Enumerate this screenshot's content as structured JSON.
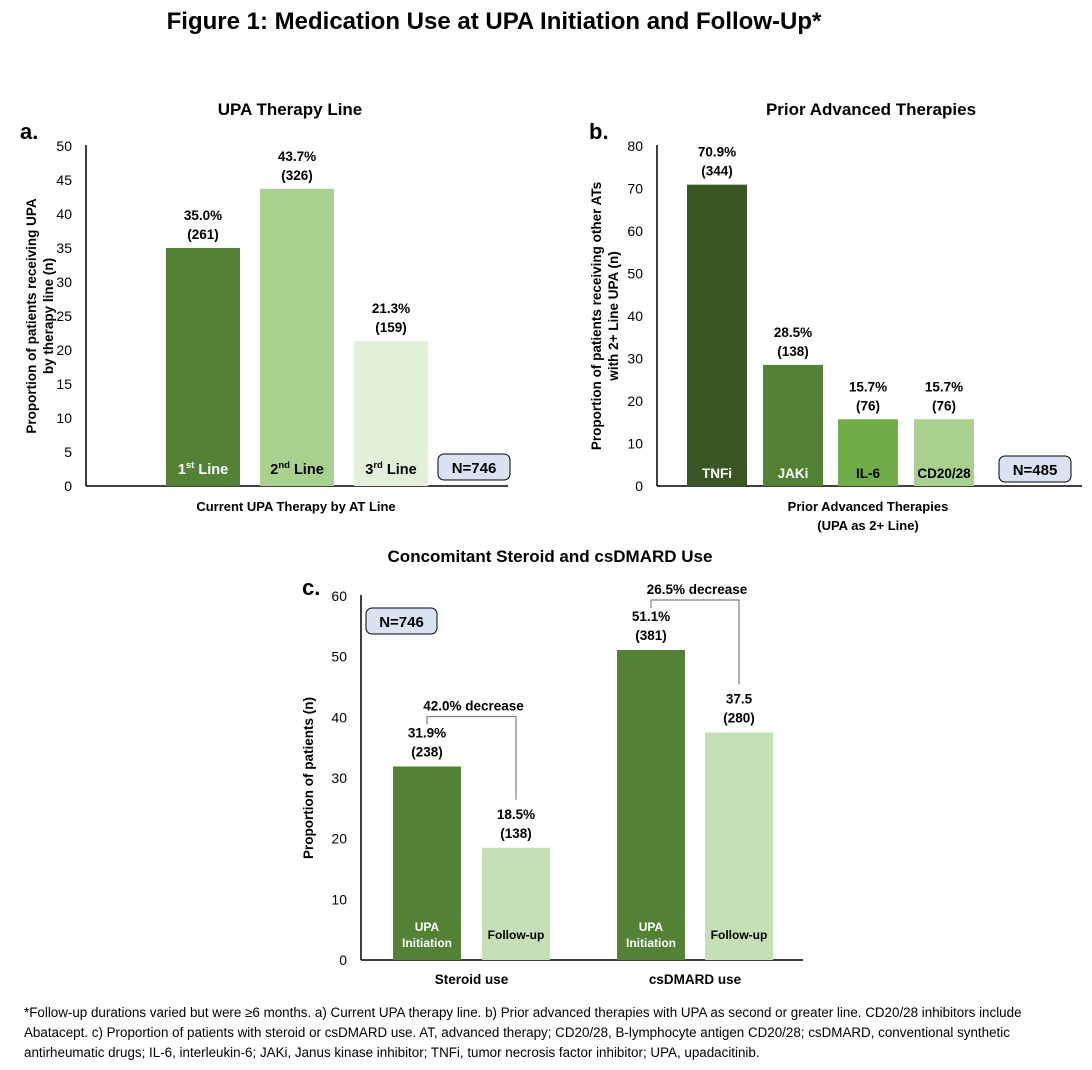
{
  "figure": {
    "title": "Figure  1: Medication Use at UPA Initiation and Follow-Up*",
    "footnote": "*Follow-up durations varied but were ≥6 months. a) Current UPA therapy line. b) Prior advanced therapies with UPA as second or greater line. CD20/28 inhibitors include Abatacept. c) Proportion of patients with steroid or csDMARD use. AT, advanced therapy; CD20/28, B-lymphocyte antigen CD20/28; csDMARD, conventional synthetic antirheumatic drugs; IL-6, interleukin-6; JAKi, Janus kinase inhibitor; TNFi, tumor necrosis factor inhibitor; UPA, upadacitinib."
  },
  "chart_data": [
    {
      "panel": "a.",
      "type": "bar",
      "title": "UPA Therapy Line",
      "xlabel": "Current UPA Therapy by AT Line",
      "ylabel_lines": [
        "Proportion of patients receiving UPA",
        "by therapy line (n)"
      ],
      "ylim": [
        0,
        50
      ],
      "yticks": [
        0,
        5,
        10,
        15,
        20,
        25,
        30,
        35,
        40,
        45,
        50
      ],
      "n_label": "N=746",
      "bars": [
        {
          "base": "1",
          "sup": "st",
          "rest": " Line",
          "value": 35.0,
          "pct": "35.0%",
          "n": "(261)",
          "color": "#548235",
          "text_color": "#ffffff"
        },
        {
          "base": "2",
          "sup": "nd",
          "rest": " Line",
          "value": 43.7,
          "pct": "43.7%",
          "n": "(326)",
          "color": "#a9d18e",
          "text_color": "#000000"
        },
        {
          "base": "3",
          "sup": "rd",
          "rest": " Line",
          "value": 21.3,
          "pct": "21.3%",
          "n": "(159)",
          "color": "#e2f0d9",
          "text_color": "#000000"
        }
      ]
    },
    {
      "panel": "b.",
      "type": "bar",
      "title": "Prior Advanced Therapies",
      "xlabel_lines": [
        "Prior Advanced Therapies",
        "(UPA as 2+ Line)"
      ],
      "ylabel_lines": [
        "Proportion of patients receiving other ATs",
        "with 2+ Line UPA (n)"
      ],
      "ylim": [
        0,
        80
      ],
      "yticks": [
        0,
        10,
        20,
        30,
        40,
        50,
        60,
        70,
        80
      ],
      "n_label": "N=485",
      "bars": [
        {
          "label": "TNFi",
          "value": 70.9,
          "pct": "70.9%",
          "n": "(344)",
          "color": "#385723",
          "text_color": "#ffffff"
        },
        {
          "label": "JAKi",
          "value": 28.5,
          "pct": "28.5%",
          "n": "(138)",
          "color": "#548235",
          "text_color": "#ffffff"
        },
        {
          "label": "IL-6",
          "value": 15.7,
          "pct": "15.7%",
          "n": "(76)",
          "color": "#70ad47",
          "text_color": "#000000"
        },
        {
          "label": "CD20/28",
          "value": 15.7,
          "pct": "15.7%",
          "n": "(76)",
          "color": "#a9d18e",
          "text_color": "#000000"
        }
      ]
    },
    {
      "panel": "c.",
      "type": "bar",
      "title": "Concomitant Steroid and csDMARD Use",
      "ylabel": "Proportion of patients (n)",
      "ylim": [
        0,
        60
      ],
      "yticks": [
        0,
        10,
        20,
        30,
        40,
        50,
        60
      ],
      "n_label": "N=746",
      "series": [
        {
          "name_lines": [
            "UPA",
            "Initiation"
          ],
          "color": "#548235",
          "text_color": "#ffffff"
        },
        {
          "name_lines": [
            "Follow-up"
          ],
          "color": "#c5e0b4",
          "text_color": "#000000"
        }
      ],
      "groups": [
        {
          "label": "Steroid use",
          "values": [
            31.9,
            18.5
          ],
          "pcts": [
            "31.9%",
            "18.5%"
          ],
          "ns": [
            "(238)",
            "(138)"
          ],
          "change": "42.0% decrease"
        },
        {
          "label": "csDMARD use",
          "values": [
            51.1,
            37.5
          ],
          "pcts": [
            "51.1%",
            "37.5"
          ],
          "ns": [
            "(381)",
            "(280)"
          ],
          "change": "26.5% decrease"
        }
      ]
    }
  ]
}
